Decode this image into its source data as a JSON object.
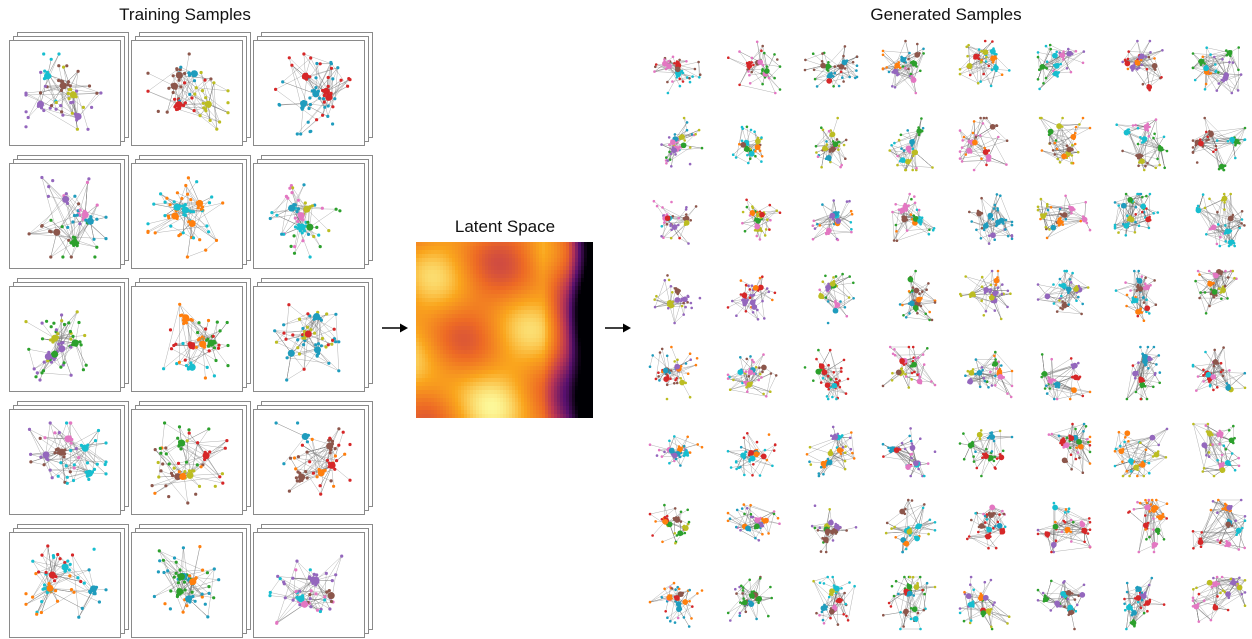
{
  "labels": {
    "training": "Training Samples",
    "latent": "Latent Space",
    "generated": "Generated Samples"
  },
  "node_colors": [
    "#e377c2",
    "#1f9cbd",
    "#17becf",
    "#9467bd",
    "#2ca02c",
    "#bcbd22",
    "#ff7f0e",
    "#8c564b",
    "#d62728"
  ],
  "edge_color": "#6b6b6b",
  "training_grid": {
    "rows": 5,
    "cols": 3
  },
  "generated_grid": {
    "rows": 8,
    "cols": 8
  },
  "colormap": "inferno"
}
